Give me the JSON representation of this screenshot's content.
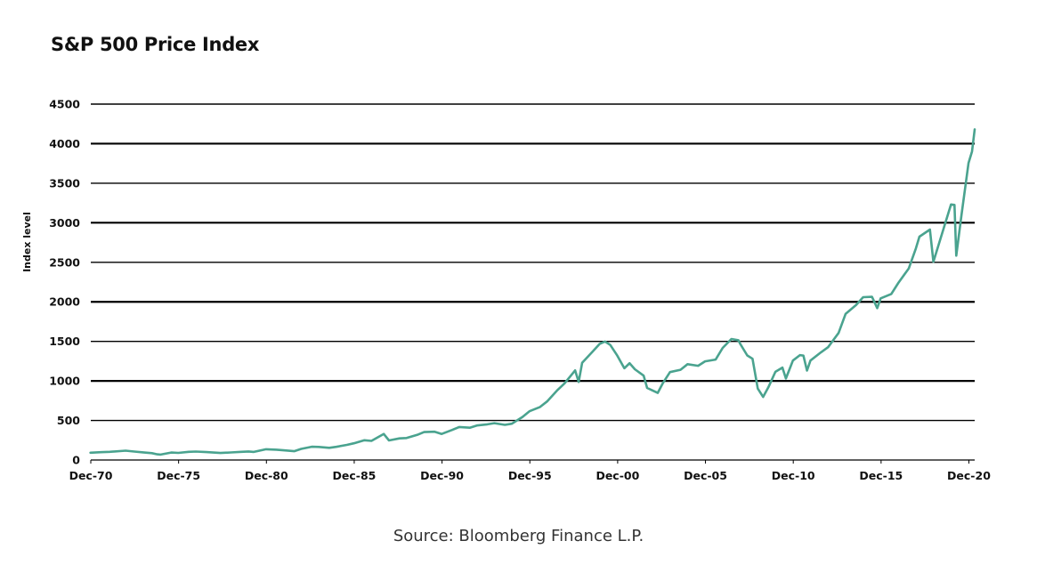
{
  "chart_data": {
    "type": "line",
    "title": "S&P 500 Price Index",
    "xlabel": "",
    "ylabel": "Index level",
    "ylim": [
      0,
      4500
    ],
    "xlim": [
      1970.92,
      2021.25
    ],
    "grid": true,
    "y_ticks": [
      0,
      500,
      1000,
      1500,
      2000,
      2500,
      3000,
      3500,
      4000,
      4500
    ],
    "x_ticks": [
      {
        "x": 1970.92,
        "label": "Dec-70"
      },
      {
        "x": 1975.92,
        "label": "Dec-75"
      },
      {
        "x": 1980.92,
        "label": "Dec-80"
      },
      {
        "x": 1985.92,
        "label": "Dec-85"
      },
      {
        "x": 1990.92,
        "label": "Dec-90"
      },
      {
        "x": 1995.92,
        "label": "Dec-95"
      },
      {
        "x": 2000.92,
        "label": "Dec-00"
      },
      {
        "x": 2005.92,
        "label": "Dec-05"
      },
      {
        "x": 2010.92,
        "label": "Dec-10"
      },
      {
        "x": 2015.92,
        "label": "Dec-15"
      },
      {
        "x": 2020.92,
        "label": "Dec-20"
      }
    ],
    "series": [
      {
        "name": "S&P 500",
        "color": "#4aa38f",
        "x": [
          1970.9,
          1971.5,
          1972.0,
          1972.9,
          1973.4,
          1973.9,
          1974.4,
          1974.7,
          1974.9,
          1975.5,
          1975.9,
          1976.5,
          1976.9,
          1977.5,
          1977.9,
          1978.3,
          1978.9,
          1979.5,
          1979.9,
          1980.2,
          1980.9,
          1981.5,
          1981.9,
          1982.5,
          1982.9,
          1983.5,
          1983.9,
          1984.5,
          1984.9,
          1985.5,
          1985.9,
          1986.5,
          1986.9,
          1987.6,
          1987.9,
          1988.5,
          1988.9,
          1989.5,
          1989.9,
          1990.5,
          1990.9,
          1991.5,
          1991.9,
          1992.5,
          1992.9,
          1993.5,
          1993.9,
          1994.5,
          1994.9,
          1995.5,
          1995.9,
          1996.5,
          1996.9,
          1997.5,
          1997.9,
          1998.5,
          1998.7,
          1998.9,
          1999.5,
          1999.9,
          2000.2,
          2000.5,
          2000.9,
          2001.3,
          2001.6,
          2001.9,
          2002.4,
          2002.6,
          2002.9,
          2003.2,
          2003.5,
          2003.9,
          2004.5,
          2004.9,
          2005.5,
          2005.9,
          2006.5,
          2006.9,
          2007.4,
          2007.8,
          2007.9,
          2008.3,
          2008.6,
          2008.9,
          2009.2,
          2009.5,
          2009.9,
          2010.3,
          2010.5,
          2010.9,
          2011.3,
          2011.5,
          2011.7,
          2011.9,
          2012.5,
          2012.9,
          2013.5,
          2013.9,
          2014.5,
          2014.9,
          2015.4,
          2015.7,
          2015.9,
          2016.5,
          2016.9,
          2017.5,
          2017.9,
          2018.1,
          2018.7,
          2018.9,
          2019.5,
          2019.9,
          2020.1,
          2020.2,
          2020.5,
          2020.9,
          2021.1,
          2021.25
        ],
        "values": [
          92,
          99,
          104,
          118,
          107,
          97,
          87,
          72,
          69,
          95,
          90,
          104,
          107,
          100,
          95,
          89,
          96,
          103,
          108,
          102,
          136,
          131,
          123,
          111,
          141,
          168,
          165,
          154,
          167,
          191,
          211,
          250,
          242,
          330,
          247,
          273,
          278,
          317,
          353,
          358,
          330,
          380,
          417,
          408,
          436,
          451,
          466,
          444,
          459,
          544,
          616,
          670,
          740,
          885,
          970,
          1133,
          987,
          1229,
          1373,
          1469,
          1498,
          1455,
          1320,
          1160,
          1224,
          1148,
          1067,
          911,
          880,
          848,
          974,
          1112,
          1141,
          1212,
          1191,
          1248,
          1270,
          1418,
          1530,
          1514,
          1468,
          1322,
          1280,
          903,
          798,
          919,
          1115,
          1169,
          1031,
          1258,
          1326,
          1320,
          1131,
          1258,
          1362,
          1426,
          1606,
          1848,
          1960,
          2059,
          2063,
          1920,
          2044,
          2099,
          2239,
          2423,
          2674,
          2824,
          2914,
          2507,
          2942,
          3231,
          3225,
          2584,
          3100,
          3756,
          3901,
          4181
        ]
      }
    ]
  },
  "source": "Source: Bloomberg Finance L.P."
}
